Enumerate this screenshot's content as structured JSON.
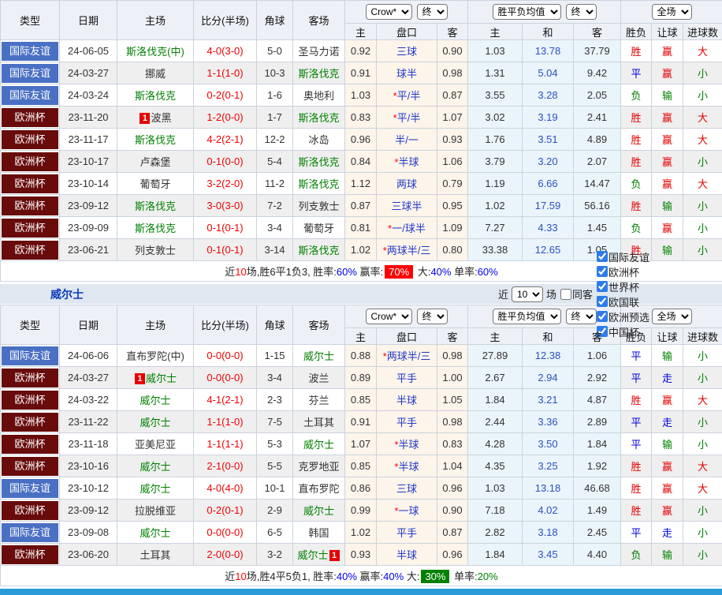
{
  "header": {
    "type": "类型",
    "date": "日期",
    "home": "主场",
    "score": "比分(半场)",
    "corner": "角球",
    "away": "客场",
    "odds_home": "主",
    "handicap": "盘口",
    "odds_away": "客",
    "avg_home": "主",
    "avg_draw": "和",
    "avg_away": "客",
    "outcome": "胜负",
    "handicap_result": "让球",
    "goals": "进球数"
  },
  "controls": {
    "bookmaker": "Crow*",
    "final": "终",
    "avg": "胜平负均值",
    "scope": "全场"
  },
  "section": {
    "team": "威尔士",
    "recent_label": "近",
    "recent_value": "10",
    "games_label": "场",
    "same_away_label": "同客",
    "filters": [
      "国际友谊",
      "欧洲杯",
      "世界杯",
      "欧国联",
      "欧洲预选",
      "中国杯"
    ]
  },
  "tables": [
    {
      "name": "斯洛伐克",
      "rows": [
        {
          "league": "国际友谊",
          "date": "24-06-05",
          "home": "斯洛伐克(中)",
          "home_green": true,
          "score": "4-0(3-0)",
          "corner": "5-0",
          "away": "圣马力诺",
          "away_green": false,
          "crow_home": "0.92",
          "handicap": "三球",
          "star": false,
          "crow_away": "0.90",
          "avg_home": "1.03",
          "avg_draw": "13.78",
          "avg_away": "37.79",
          "outcome": "胜",
          "let": "赢",
          "goals": "大"
        },
        {
          "league": "国际友谊",
          "date": "24-03-27",
          "home": "挪威",
          "home_green": false,
          "score": "1-1(1-0)",
          "corner": "10-3",
          "away": "斯洛伐克",
          "away_green": true,
          "crow_home": "0.91",
          "handicap": "球半",
          "star": false,
          "crow_away": "0.98",
          "avg_home": "1.31",
          "avg_draw": "5.04",
          "avg_away": "9.42",
          "outcome": "平",
          "let": "赢",
          "goals": "小"
        },
        {
          "league": "国际友谊",
          "date": "24-03-24",
          "home": "斯洛伐克",
          "home_green": true,
          "score": "0-2(0-1)",
          "corner": "1-6",
          "away": "奥地利",
          "away_green": false,
          "crow_home": "1.03",
          "handicap": "平/半",
          "star": true,
          "crow_away": "0.87",
          "avg_home": "3.55",
          "avg_draw": "3.28",
          "avg_away": "2.05",
          "outcome": "负",
          "let": "输",
          "goals": "小"
        },
        {
          "league": "欧洲杯",
          "date": "23-11-20",
          "home": "波黑",
          "home_green": false,
          "home_badge": "1",
          "score": "1-2(0-0)",
          "corner": "1-7",
          "away": "斯洛伐克",
          "away_green": true,
          "crow_home": "0.83",
          "handicap": "平/半",
          "star": true,
          "crow_away": "1.07",
          "avg_home": "3.02",
          "avg_draw": "3.19",
          "avg_away": "2.41",
          "outcome": "胜",
          "let": "赢",
          "goals": "大"
        },
        {
          "league": "欧洲杯",
          "date": "23-11-17",
          "home": "斯洛伐克",
          "home_green": true,
          "score": "4-2(2-1)",
          "corner": "12-2",
          "away": "冰岛",
          "away_green": false,
          "crow_home": "0.96",
          "handicap": "半/一",
          "star": false,
          "crow_away": "0.93",
          "avg_home": "1.76",
          "avg_draw": "3.51",
          "avg_away": "4.89",
          "outcome": "胜",
          "let": "赢",
          "goals": "大"
        },
        {
          "league": "欧洲杯",
          "date": "23-10-17",
          "home": "卢森堡",
          "home_green": false,
          "score": "0-1(0-0)",
          "corner": "5-4",
          "away": "斯洛伐克",
          "away_green": true,
          "crow_home": "0.84",
          "handicap": "半球",
          "star": true,
          "crow_away": "1.06",
          "avg_home": "3.79",
          "avg_draw": "3.20",
          "avg_away": "2.07",
          "outcome": "胜",
          "let": "赢",
          "goals": "小"
        },
        {
          "league": "欧洲杯",
          "date": "23-10-14",
          "home": "葡萄牙",
          "home_green": false,
          "score": "3-2(2-0)",
          "corner": "11-2",
          "away": "斯洛伐克",
          "away_green": true,
          "crow_home": "1.12",
          "handicap": "两球",
          "star": false,
          "crow_away": "0.79",
          "avg_home": "1.19",
          "avg_draw": "6.66",
          "avg_away": "14.47",
          "outcome": "负",
          "let": "赢",
          "goals": "大"
        },
        {
          "league": "欧洲杯",
          "date": "23-09-12",
          "home": "斯洛伐克",
          "home_green": true,
          "score": "3-0(3-0)",
          "corner": "7-2",
          "away": "列支敦士",
          "away_green": false,
          "crow_home": "0.87",
          "handicap": "三球半",
          "star": false,
          "crow_away": "0.95",
          "avg_home": "1.02",
          "avg_draw": "17.59",
          "avg_away": "56.16",
          "outcome": "胜",
          "let": "输",
          "goals": "小"
        },
        {
          "league": "欧洲杯",
          "date": "23-09-09",
          "home": "斯洛伐克",
          "home_green": true,
          "score": "0-1(0-1)",
          "corner": "3-4",
          "away": "葡萄牙",
          "away_green": false,
          "crow_home": "0.81",
          "handicap": "一/球半",
          "star": true,
          "crow_away": "1.09",
          "avg_home": "7.27",
          "avg_draw": "4.33",
          "avg_away": "1.45",
          "outcome": "负",
          "let": "赢",
          "goals": "小"
        },
        {
          "league": "欧洲杯",
          "date": "23-06-21",
          "home": "列支敦士",
          "home_green": false,
          "score": "0-1(0-1)",
          "corner": "3-14",
          "away": "斯洛伐克",
          "away_green": true,
          "crow_home": "1.02",
          "handicap": "两球半/三",
          "star": true,
          "crow_away": "0.80",
          "avg_home": "33.38",
          "avg_draw": "12.65",
          "avg_away": "1.05",
          "outcome": "胜",
          "let": "输",
          "goals": "小"
        }
      ],
      "summary": [
        {
          "t": "近"
        },
        {
          "t": "10",
          "c": "red"
        },
        {
          "t": "场,胜6平1负3, 胜率:"
        },
        {
          "t": "60%",
          "c": "blue"
        },
        {
          "t": " 赢率:"
        },
        {
          "t": "70%",
          "bg": "red"
        },
        {
          "t": " 大:"
        },
        {
          "t": "40%",
          "c": "blue"
        },
        {
          "t": " 单率:"
        },
        {
          "t": "60%",
          "c": "blue"
        }
      ]
    },
    {
      "name": "威尔士",
      "rows": [
        {
          "league": "国际友谊",
          "date": "24-06-06",
          "home": "直布罗陀(中)",
          "home_green": false,
          "score": "0-0(0-0)",
          "corner": "1-15",
          "away": "威尔士",
          "away_green": true,
          "crow_home": "0.88",
          "handicap": "两球半/三",
          "star": true,
          "crow_away": "0.98",
          "avg_home": "27.89",
          "avg_draw": "12.38",
          "avg_away": "1.06",
          "outcome": "平",
          "let": "输",
          "goals": "小"
        },
        {
          "league": "欧洲杯",
          "date": "24-03-27",
          "home": "威尔士",
          "home_green": true,
          "home_badge": "1",
          "score": "0-0(0-0)",
          "corner": "3-4",
          "away": "波兰",
          "away_green": false,
          "crow_home": "0.89",
          "handicap": "平手",
          "star": false,
          "crow_away": "1.00",
          "avg_home": "2.67",
          "avg_draw": "2.94",
          "avg_away": "2.92",
          "outcome": "平",
          "let": "走",
          "goals": "小"
        },
        {
          "league": "欧洲杯",
          "date": "24-03-22",
          "home": "威尔士",
          "home_green": true,
          "score": "4-1(2-1)",
          "corner": "2-3",
          "away": "芬兰",
          "away_green": false,
          "crow_home": "0.85",
          "handicap": "半球",
          "star": false,
          "crow_away": "1.05",
          "avg_home": "1.84",
          "avg_draw": "3.21",
          "avg_away": "4.87",
          "outcome": "胜",
          "let": "赢",
          "goals": "大"
        },
        {
          "league": "欧洲杯",
          "date": "23-11-22",
          "home": "威尔士",
          "home_green": true,
          "score": "1-1(1-0)",
          "corner": "7-5",
          "away": "土耳其",
          "away_green": false,
          "crow_home": "0.91",
          "handicap": "平手",
          "star": false,
          "crow_away": "0.98",
          "avg_home": "2.44",
          "avg_draw": "3.36",
          "avg_away": "2.89",
          "outcome": "平",
          "let": "走",
          "goals": "小"
        },
        {
          "league": "欧洲杯",
          "date": "23-11-18",
          "home": "亚美尼亚",
          "home_green": false,
          "score": "1-1(1-1)",
          "corner": "5-3",
          "away": "威尔士",
          "away_green": true,
          "crow_home": "1.07",
          "handicap": "半球",
          "star": true,
          "crow_away": "0.83",
          "avg_home": "4.28",
          "avg_draw": "3.50",
          "avg_away": "1.84",
          "outcome": "平",
          "let": "输",
          "goals": "小"
        },
        {
          "league": "欧洲杯",
          "date": "23-10-16",
          "home": "威尔士",
          "home_green": true,
          "score": "2-1(0-0)",
          "corner": "5-5",
          "away": "克罗地亚",
          "away_green": false,
          "crow_home": "0.85",
          "handicap": "半球",
          "star": true,
          "crow_away": "1.04",
          "avg_home": "4.35",
          "avg_draw": "3.25",
          "avg_away": "1.92",
          "outcome": "胜",
          "let": "赢",
          "goals": "大"
        },
        {
          "league": "国际友谊",
          "date": "23-10-12",
          "home": "威尔士",
          "home_green": true,
          "score": "4-0(4-0)",
          "corner": "10-1",
          "away": "直布罗陀",
          "away_green": false,
          "crow_home": "0.86",
          "handicap": "三球",
          "star": false,
          "crow_away": "0.96",
          "avg_home": "1.03",
          "avg_draw": "13.18",
          "avg_away": "46.68",
          "outcome": "胜",
          "let": "赢",
          "goals": "大"
        },
        {
          "league": "欧洲杯",
          "date": "23-09-12",
          "home": "拉脱维亚",
          "home_green": false,
          "score": "0-2(0-1)",
          "corner": "2-9",
          "away": "威尔士",
          "away_green": true,
          "crow_home": "0.99",
          "handicap": "一球",
          "star": true,
          "crow_away": "0.90",
          "avg_home": "7.18",
          "avg_draw": "4.02",
          "avg_away": "1.49",
          "outcome": "胜",
          "let": "赢",
          "goals": "小"
        },
        {
          "league": "国际友谊",
          "date": "23-09-08",
          "home": "威尔士",
          "home_green": true,
          "score": "0-0(0-0)",
          "corner": "6-5",
          "away": "韩国",
          "away_green": false,
          "crow_home": "1.02",
          "handicap": "平手",
          "star": false,
          "crow_away": "0.87",
          "avg_home": "2.82",
          "avg_draw": "3.18",
          "avg_away": "2.45",
          "outcome": "平",
          "let": "走",
          "goals": "小"
        },
        {
          "league": "欧洲杯",
          "date": "23-06-20",
          "home": "土耳其",
          "home_green": false,
          "score": "2-0(0-0)",
          "corner": "3-2",
          "away": "威尔士",
          "away_green": true,
          "away_badge": "1",
          "away_badge_pos": "after",
          "crow_home": "0.93",
          "handicap": "半球",
          "star": false,
          "crow_away": "0.96",
          "avg_home": "1.84",
          "avg_draw": "3.45",
          "avg_away": "4.40",
          "outcome": "负",
          "let": "输",
          "goals": "小"
        }
      ],
      "summary": [
        {
          "t": "近"
        },
        {
          "t": "10",
          "c": "red"
        },
        {
          "t": "场,胜4平5负1, 胜率:"
        },
        {
          "t": "40%",
          "c": "blue"
        },
        {
          "t": " 赢率:"
        },
        {
          "t": "40%",
          "c": "blue"
        },
        {
          "t": " 大:"
        },
        {
          "t": "30%",
          "bg": "green"
        },
        {
          "t": " 单率:"
        },
        {
          "t": "20%",
          "c": "green"
        }
      ]
    }
  ]
}
